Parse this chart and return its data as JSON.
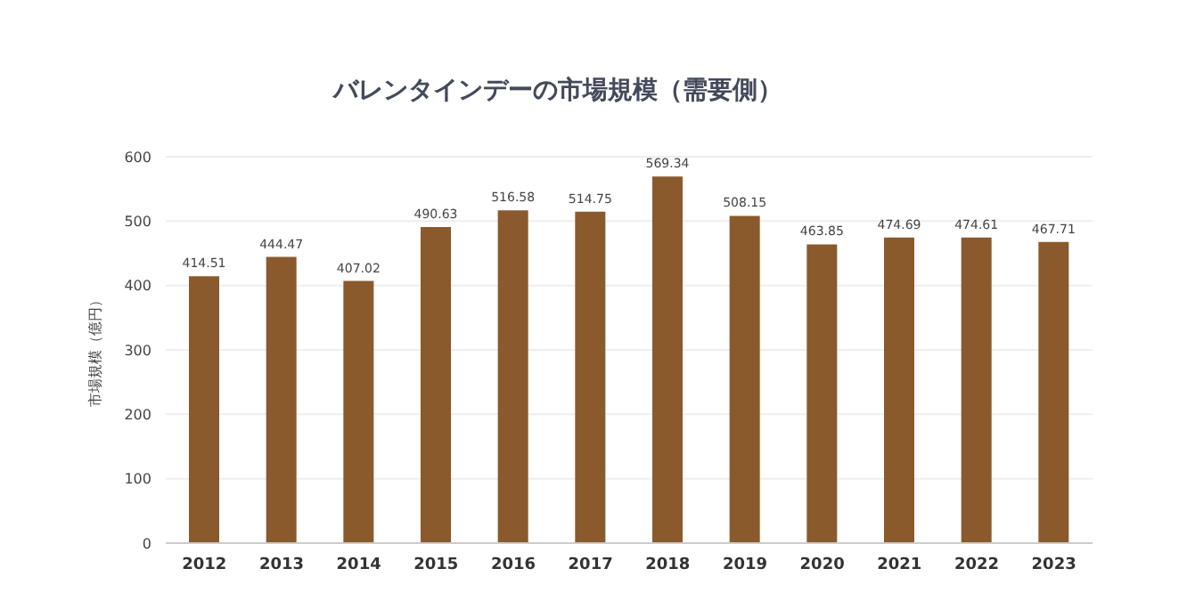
{
  "chart_data": {
    "type": "bar",
    "title": "バレンタインデーの市場規模（需要側）",
    "ylabel": "市場規模（億円）",
    "categories": [
      "2012",
      "2013",
      "2014",
      "2015",
      "2016",
      "2017",
      "2018",
      "2019",
      "2020",
      "2021",
      "2022",
      "2023"
    ],
    "values": [
      414.51,
      444.47,
      407.02,
      490.63,
      516.58,
      514.75,
      569.34,
      508.15,
      463.85,
      474.69,
      474.61,
      467.71
    ],
    "color": "#8a5a2c",
    "ylim": [
      0,
      600
    ],
    "yticks": [
      0,
      100,
      200,
      300,
      400,
      500,
      600
    ],
    "grid": "y",
    "data_labels": true
  }
}
